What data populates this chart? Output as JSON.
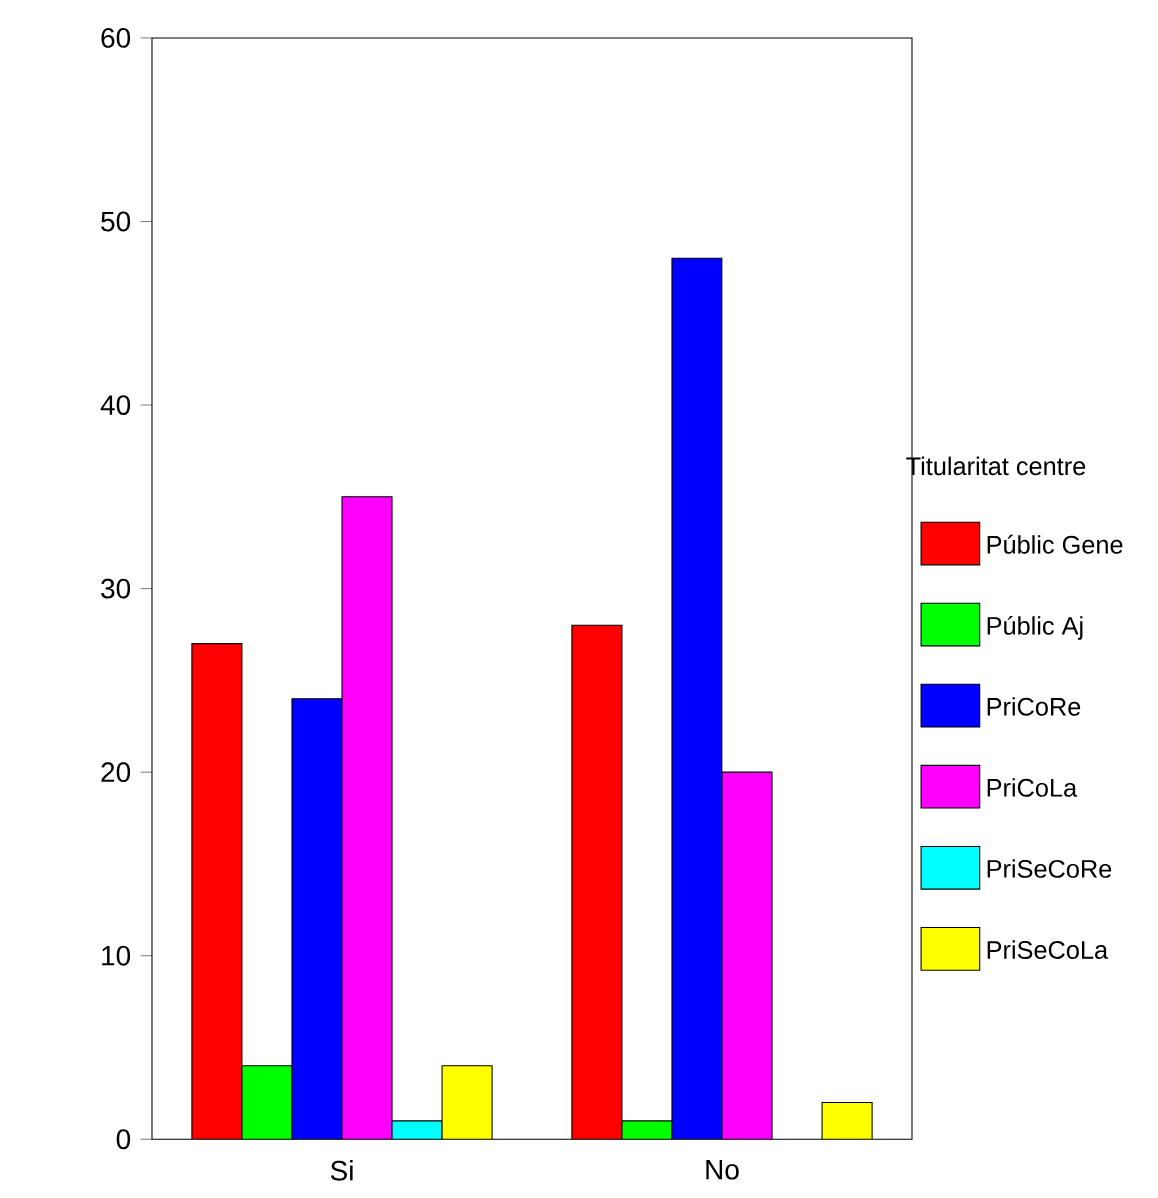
{
  "chart_data": {
    "type": "bar",
    "categories": [
      "Si",
      "No"
    ],
    "series": [
      {
        "name": "Públic Gene",
        "color": "#ff0000",
        "values": [
          27,
          28
        ]
      },
      {
        "name": "Públic Aj",
        "color": "#00ff00",
        "values": [
          4,
          1
        ]
      },
      {
        "name": "PriCoRe",
        "color": "#0000ff",
        "values": [
          24,
          48
        ]
      },
      {
        "name": "PriCoLa",
        "color": "#ff00ff",
        "values": [
          35,
          20
        ]
      },
      {
        "name": "PriSeCoRe",
        "color": "#00ffff",
        "values": [
          1,
          null
        ]
      },
      {
        "name": "PriSeCoLa",
        "color": "#ffff00",
        "values": [
          4,
          2
        ]
      }
    ],
    "ylim": [
      0,
      60
    ],
    "yticks": [
      0,
      10,
      20,
      30,
      40,
      50,
      60
    ],
    "legend": "right",
    "legend_title": "Titularitat centre",
    "grid": false
  }
}
